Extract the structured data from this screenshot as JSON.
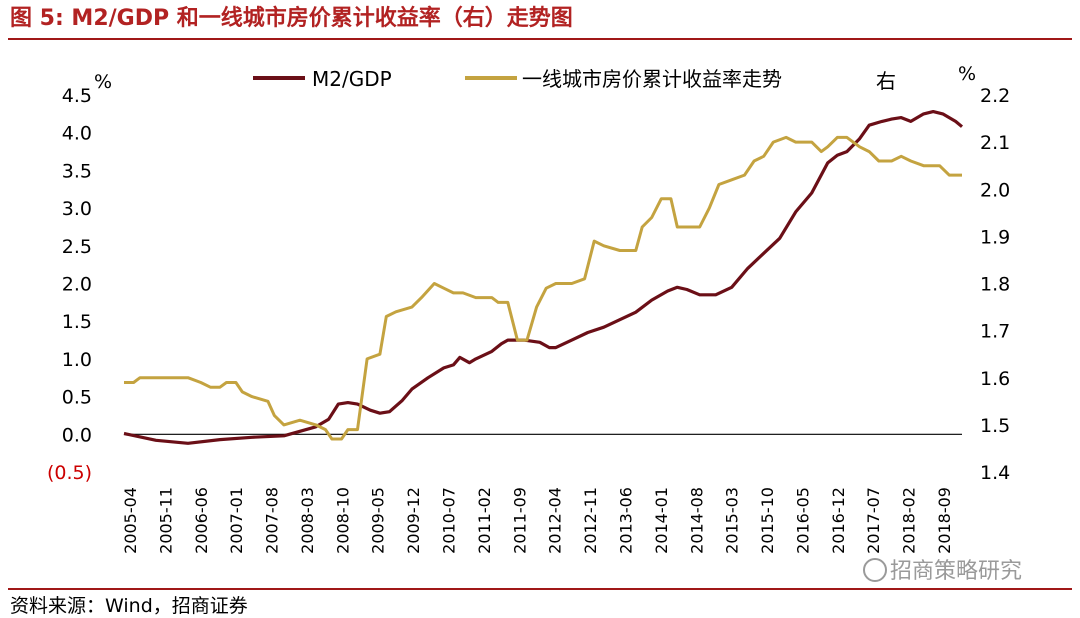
{
  "title": "图 5:  M2/GDP 和一线城市房价累计收益率（右）走势图",
  "source": "资料来源：Wind，招商证券",
  "watermark": "招商策略研究",
  "colors": {
    "title": "#b22222",
    "rule": "#a01818",
    "m2gdp": "#6b0f17",
    "housing": "#c4a340",
    "negative_tick": "#cc0000"
  },
  "chart_data": {
    "type": "line",
    "unit_left": "%",
    "unit_right": "%",
    "right_axis_marker": "右",
    "left_ticks": [
      "4.5",
      "4.0",
      "3.5",
      "3.0",
      "2.5",
      "2.0",
      "1.5",
      "1.0",
      "0.5",
      "0.0",
      "(0.5)"
    ],
    "right_ticks": [
      "2.2",
      "2.1",
      "2.0",
      "1.9",
      "1.8",
      "1.7",
      "1.6",
      "1.5",
      "1.4"
    ],
    "x_tick_labels": [
      "2005-04",
      "2005-11",
      "2006-06",
      "2007-01",
      "2007-08",
      "2008-03",
      "2008-10",
      "2009-05",
      "2009-12",
      "2010-07",
      "2011-02",
      "2011-09",
      "2012-04",
      "2012-11",
      "2013-06",
      "2014-01",
      "2014-08",
      "2015-03",
      "2015-10",
      "2016-05",
      "2016-12",
      "2017-07",
      "2018-02",
      "2018-09"
    ],
    "left_range": [
      -0.5,
      4.5
    ],
    "right_range": [
      1.4,
      2.2
    ],
    "series": [
      {
        "name": "M2/GDP",
        "axis": "left",
        "color": "#6b0f17",
        "points": [
          [
            0,
            0.01
          ],
          [
            1,
            -0.08
          ],
          [
            2,
            -0.12
          ],
          [
            3,
            -0.07
          ],
          [
            4,
            -0.04
          ],
          [
            5,
            -0.02
          ],
          [
            6,
            0.1
          ],
          [
            6.4,
            0.2
          ],
          [
            6.7,
            0.4
          ],
          [
            7,
            0.42
          ],
          [
            7.3,
            0.4
          ],
          [
            7.7,
            0.32
          ],
          [
            8,
            0.28
          ],
          [
            8.3,
            0.3
          ],
          [
            8.7,
            0.45
          ],
          [
            9,
            0.6
          ],
          [
            9.5,
            0.75
          ],
          [
            10,
            0.88
          ],
          [
            10.3,
            0.92
          ],
          [
            10.5,
            1.02
          ],
          [
            10.8,
            0.95
          ],
          [
            11,
            1.0
          ],
          [
            11.5,
            1.1
          ],
          [
            11.8,
            1.2
          ],
          [
            12,
            1.25
          ],
          [
            12.5,
            1.25
          ],
          [
            13,
            1.22
          ],
          [
            13.3,
            1.15
          ],
          [
            13.5,
            1.15
          ],
          [
            14,
            1.25
          ],
          [
            14.5,
            1.35
          ],
          [
            15,
            1.42
          ],
          [
            15.5,
            1.52
          ],
          [
            16,
            1.62
          ],
          [
            16.5,
            1.78
          ],
          [
            17,
            1.9
          ],
          [
            17.3,
            1.95
          ],
          [
            17.6,
            1.92
          ],
          [
            18,
            1.85
          ],
          [
            18.5,
            1.85
          ],
          [
            19,
            1.95
          ],
          [
            19.5,
            2.2
          ],
          [
            20,
            2.4
          ],
          [
            20.5,
            2.6
          ],
          [
            21,
            2.95
          ],
          [
            21.5,
            3.2
          ],
          [
            22,
            3.6
          ],
          [
            22.3,
            3.7
          ],
          [
            22.6,
            3.75
          ],
          [
            23,
            3.92
          ],
          [
            23.3,
            4.1
          ],
          [
            23.7,
            4.15
          ],
          [
            24,
            4.18
          ],
          [
            24.3,
            4.2
          ],
          [
            24.6,
            4.15
          ],
          [
            25,
            4.25
          ],
          [
            25.3,
            4.28
          ],
          [
            25.6,
            4.25
          ],
          [
            26,
            4.15
          ],
          [
            26.2,
            4.08
          ]
        ]
      },
      {
        "name": "一线城市房价累计收益率走势",
        "axis": "right",
        "color": "#c4a340",
        "points": [
          [
            0,
            1.59
          ],
          [
            0.3,
            1.59
          ],
          [
            0.5,
            1.6
          ],
          [
            1.2,
            1.6
          ],
          [
            1.4,
            1.6
          ],
          [
            2,
            1.6
          ],
          [
            2.4,
            1.59
          ],
          [
            2.7,
            1.58
          ],
          [
            3.0,
            1.58
          ],
          [
            3.2,
            1.59
          ],
          [
            3.5,
            1.59
          ],
          [
            3.7,
            1.57
          ],
          [
            4,
            1.56
          ],
          [
            4.5,
            1.55
          ],
          [
            4.7,
            1.52
          ],
          [
            5,
            1.5
          ],
          [
            5.5,
            1.51
          ],
          [
            6,
            1.5
          ],
          [
            6.3,
            1.49
          ],
          [
            6.5,
            1.47
          ],
          [
            6.8,
            1.47
          ],
          [
            7,
            1.49
          ],
          [
            7.3,
            1.49
          ],
          [
            7.6,
            1.64
          ],
          [
            8,
            1.65
          ],
          [
            8.2,
            1.73
          ],
          [
            8.5,
            1.74
          ],
          [
            9,
            1.75
          ],
          [
            9.3,
            1.77
          ],
          [
            9.7,
            1.8
          ],
          [
            10,
            1.79
          ],
          [
            10.3,
            1.78
          ],
          [
            10.6,
            1.78
          ],
          [
            11,
            1.77
          ],
          [
            11.5,
            1.77
          ],
          [
            11.7,
            1.76
          ],
          [
            12,
            1.76
          ],
          [
            12.3,
            1.68
          ],
          [
            12.6,
            1.68
          ],
          [
            12.9,
            1.75
          ],
          [
            13.2,
            1.79
          ],
          [
            13.5,
            1.8
          ],
          [
            14,
            1.8
          ],
          [
            14.4,
            1.81
          ],
          [
            14.7,
            1.89
          ],
          [
            15,
            1.88
          ],
          [
            15.5,
            1.87
          ],
          [
            16,
            1.87
          ],
          [
            16.2,
            1.92
          ],
          [
            16.5,
            1.94
          ],
          [
            16.8,
            1.98
          ],
          [
            17.1,
            1.98
          ],
          [
            17.3,
            1.92
          ],
          [
            17.6,
            1.92
          ],
          [
            18,
            1.92
          ],
          [
            18.3,
            1.96
          ],
          [
            18.6,
            2.01
          ],
          [
            19,
            2.02
          ],
          [
            19.4,
            2.03
          ],
          [
            19.7,
            2.06
          ],
          [
            20,
            2.07
          ],
          [
            20.3,
            2.1
          ],
          [
            20.7,
            2.11
          ],
          [
            21,
            2.1
          ],
          [
            21.5,
            2.1
          ],
          [
            21.8,
            2.08
          ],
          [
            22,
            2.09
          ],
          [
            22.3,
            2.11
          ],
          [
            22.6,
            2.11
          ],
          [
            23,
            2.09
          ],
          [
            23.3,
            2.08
          ],
          [
            23.6,
            2.06
          ],
          [
            24,
            2.06
          ],
          [
            24.3,
            2.07
          ],
          [
            24.6,
            2.06
          ],
          [
            25,
            2.05
          ],
          [
            25.5,
            2.05
          ],
          [
            25.8,
            2.03
          ],
          [
            26.2,
            2.03
          ]
        ]
      }
    ]
  }
}
